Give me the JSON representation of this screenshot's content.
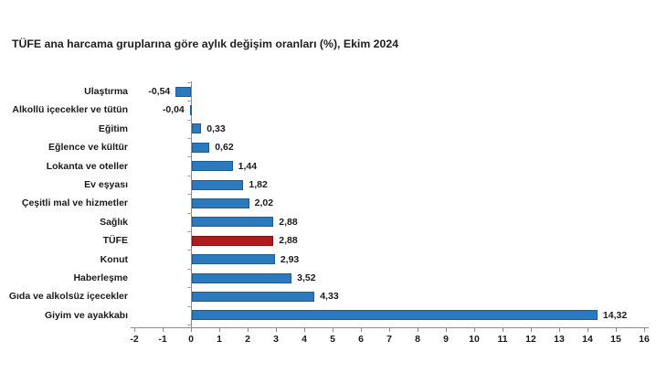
{
  "title": "TÜFE ana harcama gruplarına göre aylık değişim oranları (%), Ekim 2024",
  "colors": {
    "bar_blue": "#2B7ABD",
    "bar_blue_border": "#1E5C94",
    "bar_red": "#B2191E",
    "bar_red_border": "#7C1013",
    "axis": "#8C8C8C",
    "text": "#1A1A1A"
  },
  "chart_data": {
    "type": "bar",
    "orientation": "horizontal",
    "title": "TÜFE ana harcama gruplarına göre aylık değişim oranları (%), Ekim 2024",
    "categories": [
      "Ulaştırma",
      "Alkollü içecekler ve tütün",
      "Eğitim",
      "Eğlence ve kültür",
      "Lokanta ve oteller",
      "Ev eşyası",
      "Çeşitli mal ve hizmetler",
      "Sağlık",
      "TÜFE",
      "Konut",
      "Haberleşme",
      "Gıda ve alkolsüz içecekler",
      "Giyim ve ayakkabı"
    ],
    "values": [
      -0.54,
      -0.04,
      0.33,
      0.62,
      1.44,
      1.82,
      2.02,
      2.88,
      2.88,
      2.93,
      3.52,
      4.33,
      14.32
    ],
    "value_labels": [
      "-0,54",
      "-0,04",
      "0,33",
      "0,62",
      "1,44",
      "1,82",
      "2,02",
      "2,88",
      "2,88",
      "2,93",
      "3,52",
      "4,33",
      "14,32"
    ],
    "highlight_category": "TÜFE",
    "xlabel": "",
    "ylabel": "",
    "xlim": [
      -2,
      16
    ],
    "x_ticks": [
      -2,
      -1,
      0,
      1,
      2,
      3,
      4,
      5,
      6,
      7,
      8,
      9,
      10,
      11,
      12,
      13,
      14,
      15,
      16
    ],
    "x_tick_labels": [
      "-2",
      "-1",
      "0",
      "1",
      "2",
      "3",
      "4",
      "5",
      "6",
      "7",
      "8",
      "9",
      "10",
      "11",
      "12",
      "13",
      "14",
      "15",
      "16"
    ],
    "grid": false,
    "legend": false
  }
}
